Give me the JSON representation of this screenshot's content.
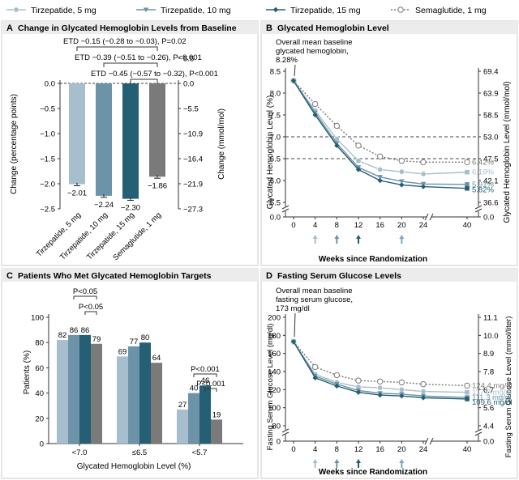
{
  "colors": {
    "tirz5": "#a7bfcc",
    "tirz10": "#6d93a8",
    "tirz15": "#245f74",
    "sema1": "#7a7a7a",
    "panel_bg": "#ffffff",
    "panel_border": "#cccccc",
    "header_bg": "#ececec",
    "grid": "#444444",
    "accent_arrow": "#7aa6c2"
  },
  "legend": [
    {
      "label": "Tirzepatide, 5 mg",
      "key": "tirz5",
      "marker": "circle"
    },
    {
      "label": "Tirzepatide, 10 mg",
      "key": "tirz10",
      "marker": "triangle"
    },
    {
      "label": "Tirzepatide, 15 mg",
      "key": "tirz15",
      "marker": "diamond"
    },
    {
      "label": "Semaglutide, 1 mg",
      "key": "sema1",
      "marker": "open-circle"
    }
  ],
  "chart_data": [
    {
      "panel": "A",
      "type": "bar",
      "title": "Change in Glycated Hemoglobin Levels from Baseline",
      "ylabel": "Change (percentage points)",
      "ylabel_right": "Change (mmol/mol)",
      "ylim": [
        -2.5,
        0.0
      ],
      "yticks": [
        "0.0",
        "−0.5",
        "−1.0",
        "−1.5",
        "−2.0",
        "−2.5"
      ],
      "ytick_values": [
        0.0,
        -0.5,
        -1.0,
        -1.5,
        -2.0,
        -2.5
      ],
      "yticks_right": [
        "5.5",
        "0.0",
        "−5.5",
        "−10.9",
        "−16.4",
        "−21.9",
        "−27.3"
      ],
      "yticks_right_values": [
        0.5,
        0.0,
        -0.5,
        -1.0,
        -1.5,
        -2.0,
        -2.5
      ],
      "categories": [
        "Tirzepatide, 5 mg",
        "Tirzepatide, 10 mg",
        "Tirzepatide, 15 mg",
        "Semaglutide, 1 mg"
      ],
      "values": [
        -2.01,
        -2.24,
        -2.3,
        -1.86
      ],
      "value_labels": [
        "−2.01",
        "−2.24",
        "−2.30",
        "−1.86"
      ],
      "series_keys": [
        "tirz5",
        "tirz10",
        "tirz15",
        "sema1"
      ],
      "error_bars": [
        0.03,
        0.03,
        0.03,
        0.03
      ],
      "annotations": [
        "ETD −0.15 (−0.28 to −0.03), P=0.02",
        "ETD −0.39 (−0.51 to −0.26), P<0.001",
        "ETD −0.45 (−0.57 to −0.32), P<0.001"
      ]
    },
    {
      "panel": "B",
      "type": "line",
      "title": "Glycated Hemoglobin Level",
      "xlabel": "Weeks since Randomization",
      "ylabel": "Glycated Hemoglobin Level (%)",
      "ylabel_right": "Glycated Hemoglobin Level (mmol/mol)",
      "x": [
        0,
        4,
        8,
        12,
        16,
        20,
        24,
        40
      ],
      "xticks": [
        "0",
        "4",
        "8",
        "12",
        "16",
        "20",
        "24",
        "40"
      ],
      "ylim": [
        5.5,
        8.5
      ],
      "yticks": [
        "5.5",
        "6.0",
        "6.5",
        "7.0",
        "7.5",
        "8.0",
        "8.5",
        "0.0"
      ],
      "yticks_right": [
        "36.6",
        "42.1",
        "47.5",
        "53.0",
        "58.5",
        "63.9",
        "69.4",
        "0.0"
      ],
      "yticks_right_values": [
        5.5,
        6.0,
        6.5,
        7.0,
        7.5,
        8.0,
        8.5
      ],
      "reference_lines": [
        7.0,
        6.5
      ],
      "baseline_note": "Overall mean baseline glycated hemoglobin, 8.28%",
      "series": [
        {
          "key": "sema1",
          "values": [
            8.28,
            7.75,
            7.25,
            6.8,
            6.55,
            6.45,
            6.42,
            6.42
          ],
          "end_label": "6.42%"
        },
        {
          "key": "tirz5",
          "values": [
            8.28,
            7.6,
            6.95,
            6.45,
            6.25,
            6.2,
            6.15,
            6.19
          ],
          "end_label": "6.19%"
        },
        {
          "key": "tirz10",
          "values": [
            8.28,
            7.55,
            6.85,
            6.3,
            6.08,
            5.98,
            5.92,
            5.91
          ],
          "end_label": "5.91%"
        },
        {
          "key": "tirz15",
          "values": [
            8.28,
            7.5,
            6.8,
            6.25,
            6.0,
            5.9,
            5.86,
            5.82
          ],
          "end_label": "5.82%"
        }
      ],
      "arrows_at_weeks": [
        4,
        8,
        12,
        20
      ]
    },
    {
      "panel": "C",
      "type": "bar",
      "title": "Patients Who Met Glycated Hemoglobin Targets",
      "xlabel": "Glycated Hemoglobin Level (%)",
      "ylabel": "Patients (%)",
      "ylim": [
        0,
        100
      ],
      "yticks": [
        "0",
        "20",
        "40",
        "60",
        "80",
        "100"
      ],
      "ytick_values": [
        0,
        20,
        40,
        60,
        80,
        100
      ],
      "categories": [
        "<7.0",
        "≤6.5",
        "<5.7"
      ],
      "series": [
        {
          "key": "tirz5",
          "values": [
            82,
            69,
            27
          ]
        },
        {
          "key": "tirz10",
          "values": [
            86,
            77,
            40
          ]
        },
        {
          "key": "tirz15",
          "values": [
            86,
            80,
            46
          ]
        },
        {
          "key": "sema1",
          "values": [
            79,
            64,
            19
          ]
        }
      ],
      "annotations": [
        "P<0.05",
        "P<0.05",
        "P<0.001",
        "P<0.001"
      ]
    },
    {
      "panel": "D",
      "type": "line",
      "title": "Fasting Serum Glucose Levels",
      "xlabel": "Weeks since Randomization",
      "ylabel": "Fasting Serum Glucose Level (mg/dl)",
      "ylabel_right": "Fasting Serum Glucose Level (mmol/liter)",
      "x": [
        0,
        4,
        8,
        12,
        16,
        20,
        24,
        40
      ],
      "xticks": [
        "0",
        "4",
        "8",
        "12",
        "16",
        "20",
        "24",
        "40"
      ],
      "ylim": [
        80,
        200
      ],
      "yticks": [
        "80",
        "100",
        "120",
        "140",
        "160",
        "180",
        "200",
        "0"
      ],
      "yticks_right": [
        "4.4",
        "5.6",
        "6.7",
        "7.8",
        "8.9",
        "10.0",
        "11.1",
        "0.0"
      ],
      "yticks_right_values": [
        80,
        100,
        120,
        140,
        160,
        180,
        200
      ],
      "baseline_note": "Overall mean baseline fasting serum glucose, 173 mg/dl",
      "series": [
        {
          "key": "sema1",
          "values": [
            173,
            145,
            136,
            130,
            129,
            128,
            126,
            124.4
          ],
          "end_label": "124.4 mg/dl"
        },
        {
          "key": "tirz5",
          "values": [
            173,
            137,
            128,
            123,
            122,
            120,
            118,
            117.0
          ],
          "end_label": "117.0 mg/dl"
        },
        {
          "key": "tirz10",
          "values": [
            173,
            135,
            126,
            119,
            116,
            115,
            113,
            111.3
          ],
          "end_label": "111.3 mg/dl"
        },
        {
          "key": "tirz15",
          "values": [
            173,
            133,
            124,
            117,
            114,
            113,
            111,
            109.6
          ],
          "end_label": "109.6 mg/dl"
        }
      ],
      "arrows_at_weeks": [
        4,
        8,
        12,
        20
      ]
    }
  ]
}
